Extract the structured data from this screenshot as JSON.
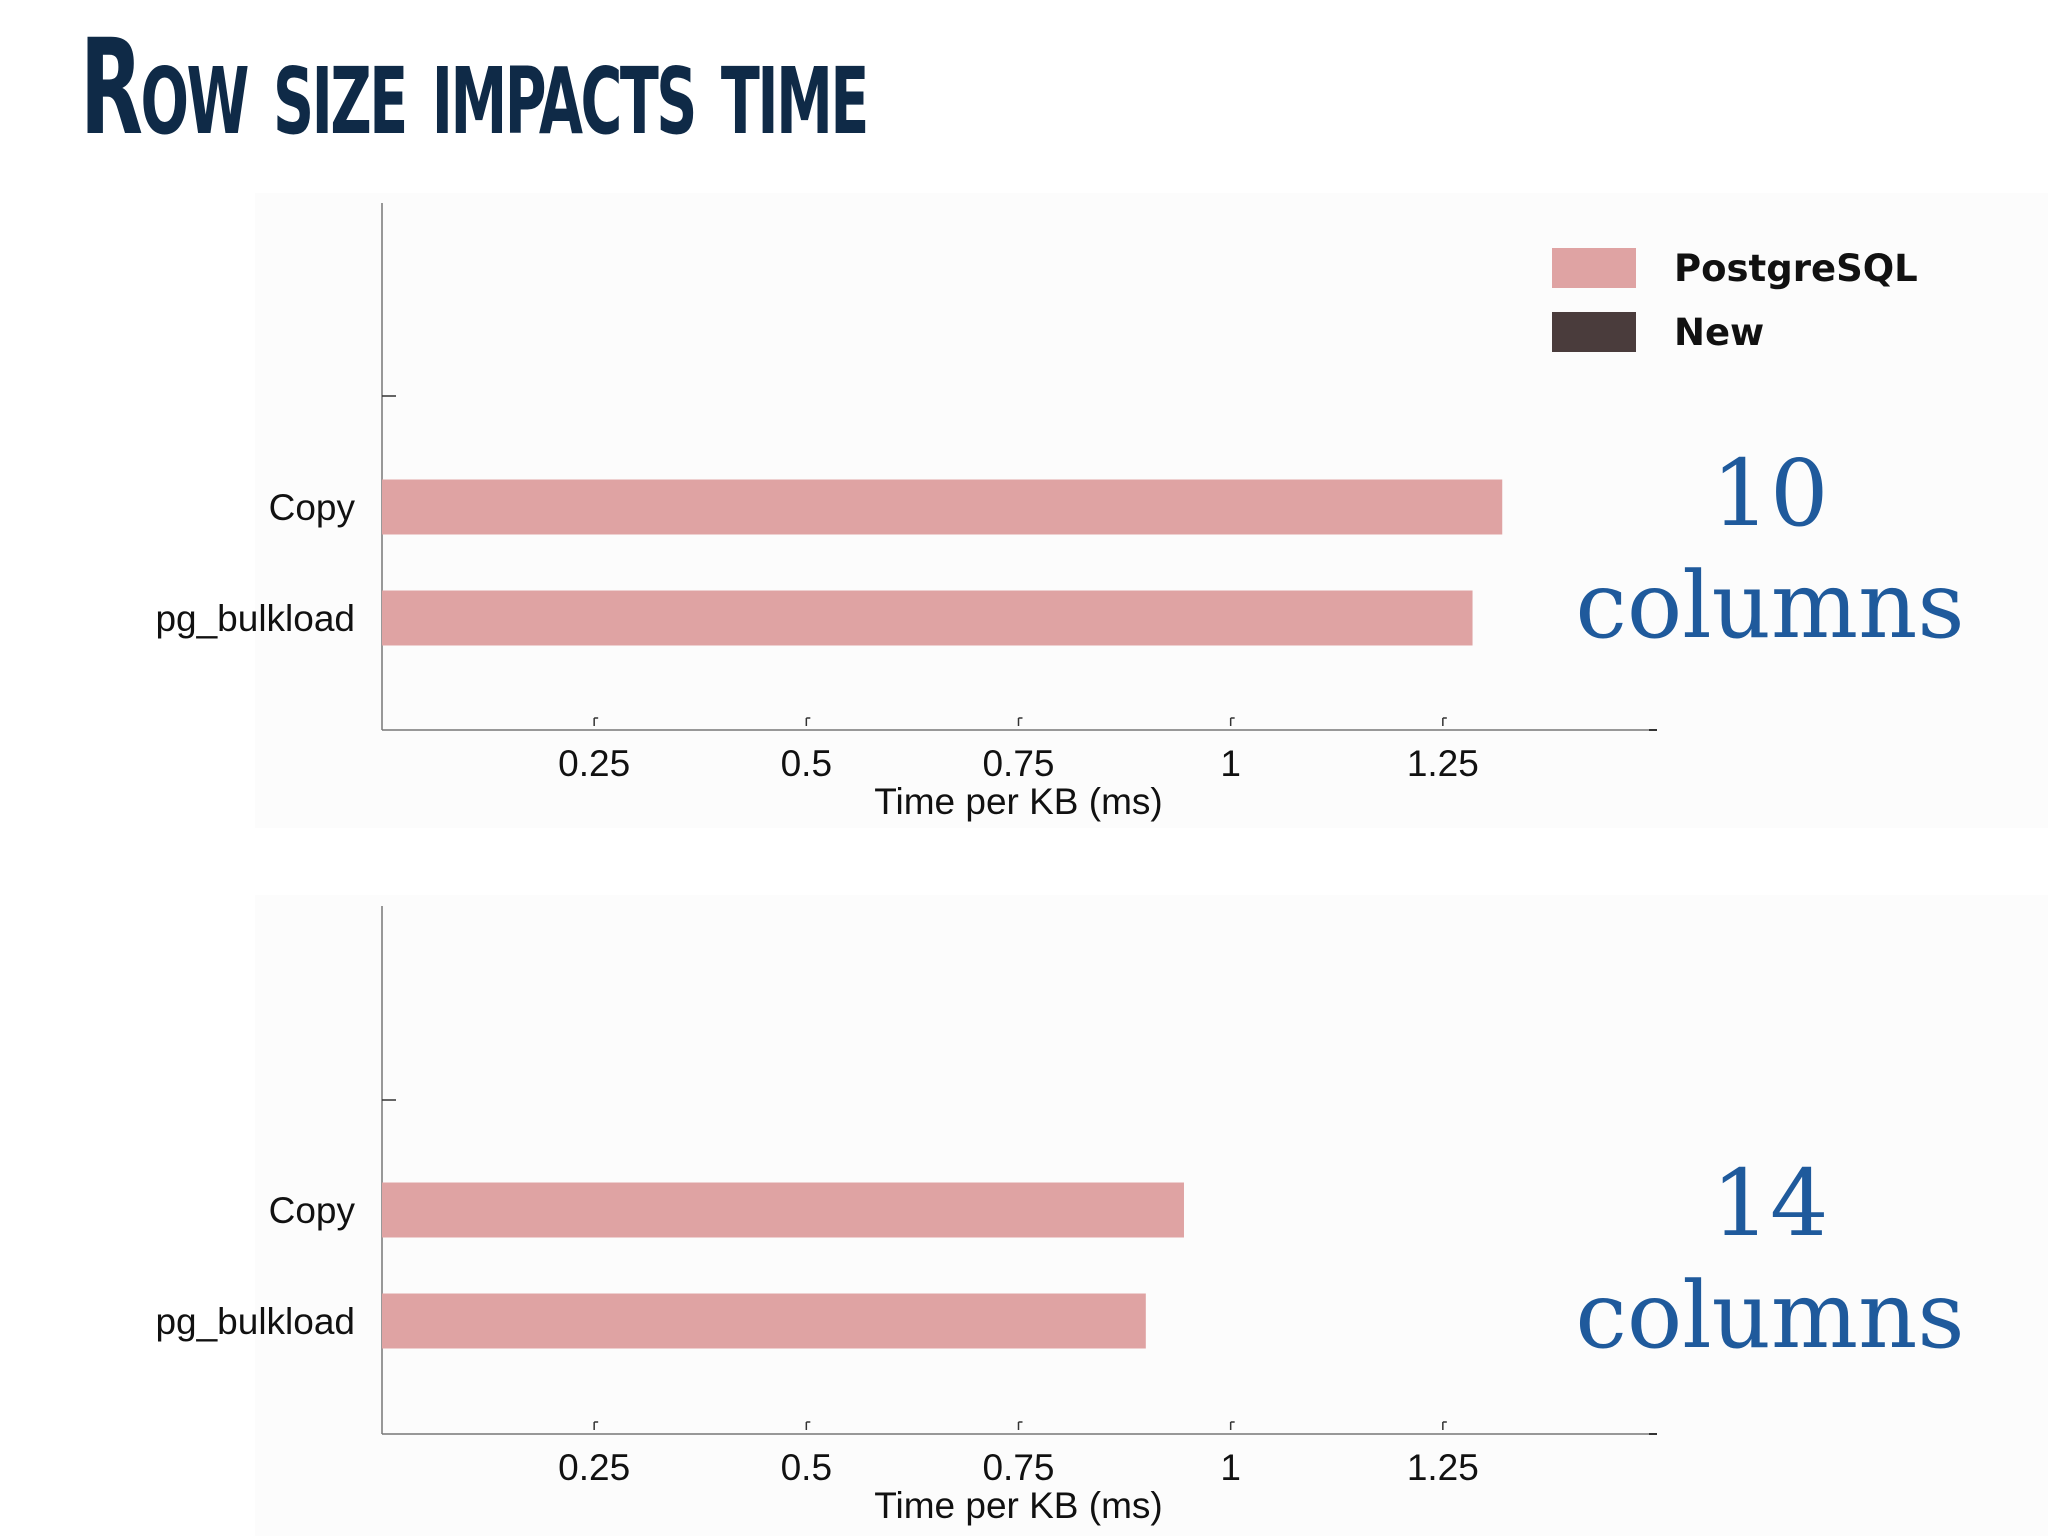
{
  "title": "Row size impacts time",
  "legend": [
    {
      "label": "PostgreSQL",
      "color": "#dfa3a3"
    },
    {
      "label": "New",
      "color": "#4a3c3c"
    }
  ],
  "chart_data": [
    {
      "type": "bar",
      "orientation": "horizontal",
      "categories": [
        "Copy",
        "pg_bulkload"
      ],
      "series": [
        {
          "name": "PostgreSQL",
          "values": [
            1.32,
            1.285
          ],
          "color": "#dfa3a3"
        }
      ],
      "xlabel": "Time per KB (ms)",
      "xticks": [
        "0.25",
        "0.5",
        "0.75",
        "1",
        "1.25"
      ],
      "xlim": [
        0,
        1.5
      ],
      "annotation": [
        "10",
        "columns"
      ]
    },
    {
      "type": "bar",
      "orientation": "horizontal",
      "categories": [
        "Copy",
        "pg_bulkload"
      ],
      "series": [
        {
          "name": "PostgreSQL",
          "values": [
            0.945,
            0.9
          ],
          "color": "#dfa3a3"
        }
      ],
      "xlabel": "Time per KB (ms)",
      "xticks": [
        "0.25",
        "0.5",
        "0.75",
        "1",
        "1.25"
      ],
      "xlim": [
        0,
        1.5
      ],
      "annotation": [
        "14",
        "columns"
      ]
    }
  ]
}
